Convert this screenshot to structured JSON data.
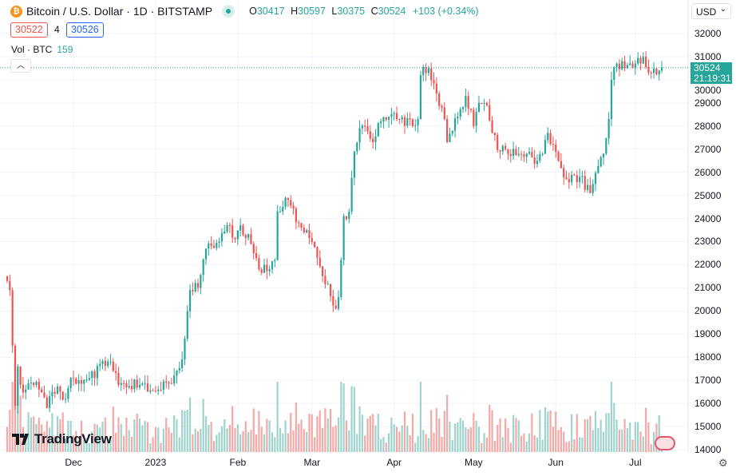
{
  "header": {
    "symbol": "Bitcoin / U.S. Dollar · 1D · BITSTAMP",
    "coin_glyph": "₿",
    "o_label": "O",
    "o": "30417",
    "h_label": "H",
    "h": "30597",
    "l_label": "L",
    "l": "30375",
    "c_label": "C",
    "c": "30524",
    "change": "+103 (+0.34%)"
  },
  "bid_ask": {
    "sell": "30522",
    "spread": "4",
    "buy": "30526"
  },
  "volume_legend": {
    "label": "Vol · BTC",
    "value": "159"
  },
  "currency": {
    "selected": "USD"
  },
  "current_price": {
    "price": "30524",
    "countdown": "21:19:31"
  },
  "price_axis": [
    "32000",
    "31000",
    "30000",
    "29000",
    "28000",
    "27000",
    "26000",
    "25000",
    "24000",
    "23000",
    "22000",
    "21000",
    "20000",
    "19000",
    "18000",
    "17000",
    "16000",
    "15000",
    "14000"
  ],
  "time_axis": [
    {
      "label": "Dec",
      "day": 25
    },
    {
      "label": "2023",
      "day": 56
    },
    {
      "label": "Feb",
      "day": 87
    },
    {
      "label": "Mar",
      "day": 115
    },
    {
      "label": "Apr",
      "day": 146
    },
    {
      "label": "May",
      "day": 176
    },
    {
      "label": "Jun",
      "day": 207
    },
    {
      "label": "Jul",
      "day": 237
    }
  ],
  "branding": {
    "logo": "TradingView"
  },
  "colors": {
    "up": "#26a69a",
    "down": "#ef5350",
    "up_vol": "#9fd4cd",
    "down_vol": "#f4a9a7",
    "grid": "#f0f3fa"
  },
  "chart_data": {
    "type": "candlestick",
    "ylim": [
      14000,
      32000
    ],
    "days": 248,
    "start": "Nov 6 2022",
    "last_close": 30524,
    "close_keypoints": [
      [
        0,
        21300
      ],
      [
        1,
        20900
      ],
      [
        2,
        18500
      ],
      [
        3,
        15900
      ],
      [
        4,
        17600
      ],
      [
        5,
        16800
      ],
      [
        7,
        16600
      ],
      [
        9,
        16900
      ],
      [
        12,
        16600
      ],
      [
        15,
        15800
      ],
      [
        17,
        16500
      ],
      [
        20,
        16500
      ],
      [
        22,
        16200
      ],
      [
        24,
        17100
      ],
      [
        27,
        17000
      ],
      [
        31,
        17100
      ],
      [
        38,
        17800
      ],
      [
        40,
        17400
      ],
      [
        42,
        16800
      ],
      [
        50,
        16800
      ],
      [
        55,
        16550
      ],
      [
        60,
        16900
      ],
      [
        63,
        17200
      ],
      [
        66,
        17900
      ],
      [
        67,
        18800
      ],
      [
        69,
        20900
      ],
      [
        72,
        21000
      ],
      [
        75,
        22700
      ],
      [
        80,
        23000
      ],
      [
        84,
        23700
      ],
      [
        86,
        23100
      ],
      [
        88,
        23700
      ],
      [
        92,
        22900
      ],
      [
        95,
        21800
      ],
      [
        99,
        21800
      ],
      [
        101,
        22200
      ],
      [
        102,
        24300
      ],
      [
        104,
        24500
      ],
      [
        106,
        24800
      ],
      [
        110,
        23800
      ],
      [
        114,
        23150
      ],
      [
        117,
        22300
      ],
      [
        124,
        20100
      ],
      [
        125,
        20600
      ],
      [
        126,
        22200
      ],
      [
        127,
        24100
      ],
      [
        129,
        24300
      ],
      [
        131,
        26900
      ],
      [
        133,
        27900
      ],
      [
        135,
        28000
      ],
      [
        138,
        27300
      ],
      [
        141,
        28200
      ],
      [
        144,
        28400
      ],
      [
        147,
        28300
      ],
      [
        153,
        28000
      ],
      [
        155,
        28300
      ],
      [
        156,
        30200
      ],
      [
        159,
        30500
      ],
      [
        162,
        29400
      ],
      [
        164,
        28800
      ],
      [
        166,
        27300
      ],
      [
        168,
        27800
      ],
      [
        170,
        28400
      ],
      [
        173,
        29300
      ],
      [
        175,
        28700
      ],
      [
        176,
        28000
      ],
      [
        178,
        29000
      ],
      [
        181,
        28900
      ],
      [
        183,
        27700
      ],
      [
        186,
        26900
      ],
      [
        188,
        27000
      ],
      [
        193,
        26800
      ],
      [
        196,
        26800
      ],
      [
        200,
        26500
      ],
      [
        202,
        26800
      ],
      [
        204,
        27700
      ],
      [
        206,
        27200
      ],
      [
        211,
        25700
      ],
      [
        216,
        25800
      ],
      [
        220,
        25100
      ],
      [
        221,
        25500
      ],
      [
        225,
        26800
      ],
      [
        227,
        28300
      ],
      [
        228,
        30000
      ],
      [
        230,
        30700
      ],
      [
        233,
        30500
      ],
      [
        236,
        30500
      ],
      [
        240,
        31000
      ],
      [
        243,
        30300
      ],
      [
        246,
        30400
      ],
      [
        247,
        30524
      ]
    ]
  }
}
